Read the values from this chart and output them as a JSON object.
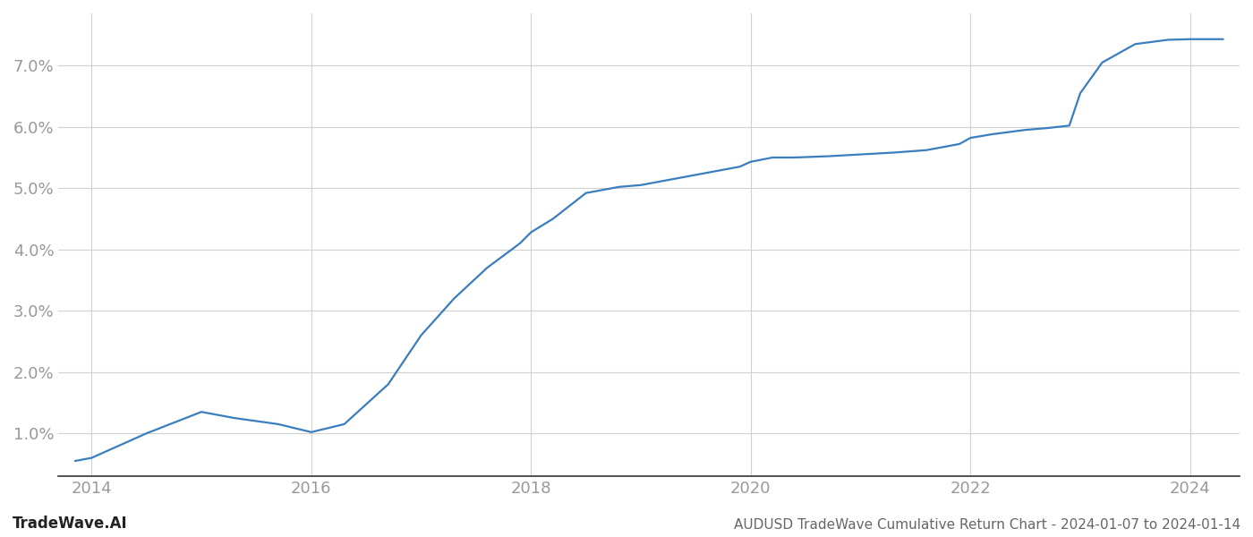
{
  "x_years": [
    2013.85,
    2014.0,
    2014.5,
    2015.0,
    2015.3,
    2015.7,
    2016.0,
    2016.3,
    2016.7,
    2017.0,
    2017.3,
    2017.6,
    2017.9,
    2018.0,
    2018.2,
    2018.5,
    2018.8,
    2019.0,
    2019.3,
    2019.6,
    2019.9,
    2020.0,
    2020.2,
    2020.4,
    2020.7,
    2021.0,
    2021.3,
    2021.6,
    2021.9,
    2022.0,
    2022.2,
    2022.5,
    2022.7,
    2022.9,
    2023.0,
    2023.2,
    2023.5,
    2023.8,
    2024.0,
    2024.3
  ],
  "y_values": [
    0.55,
    0.6,
    1.0,
    1.35,
    1.25,
    1.15,
    1.02,
    1.15,
    1.8,
    2.6,
    3.2,
    3.7,
    4.1,
    4.28,
    4.5,
    4.92,
    5.02,
    5.05,
    5.15,
    5.25,
    5.35,
    5.43,
    5.5,
    5.5,
    5.52,
    5.55,
    5.58,
    5.62,
    5.72,
    5.82,
    5.88,
    5.95,
    5.98,
    6.02,
    6.55,
    7.05,
    7.35,
    7.42,
    7.43,
    7.43
  ],
  "line_color": "#3a7ebf",
  "line_width": 1.6,
  "background_color": "#ffffff",
  "grid_color": "#d0d0d0",
  "ytick_labels": [
    "1.0%",
    "2.0%",
    "3.0%",
    "4.0%",
    "5.0%",
    "6.0%",
    "7.0%"
  ],
  "ytick_values": [
    1.0,
    2.0,
    3.0,
    4.0,
    5.0,
    6.0,
    7.0
  ],
  "xtick_values": [
    2014,
    2016,
    2018,
    2020,
    2022,
    2024
  ],
  "xtick_labels": [
    "2014",
    "2016",
    "2018",
    "2020",
    "2022",
    "2024"
  ],
  "xlim": [
    2013.7,
    2024.45
  ],
  "ylim": [
    0.3,
    7.85
  ],
  "footer_left": "TradeWave.AI",
  "footer_right": "AUDUSD TradeWave Cumulative Return Chart - 2024-01-07 to 2024-01-14",
  "label_color": "#999999",
  "spine_color": "#333333",
  "footer_left_color": "#222222",
  "footer_right_color": "#666666"
}
